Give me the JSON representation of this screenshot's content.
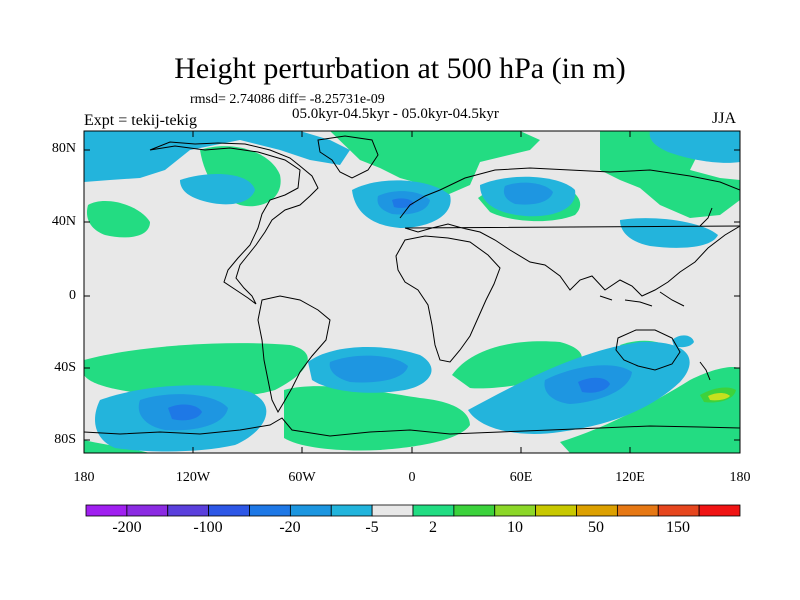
{
  "title": "Height perturbation at 500 hPa (in m)",
  "stats": "rmsd= 2.74086 diff= -8.25731e-09",
  "period": "05.0kyr-04.5kyr - 05.0kyr-04.5kyr",
  "experiment": "Expt = tekij-tekig",
  "season": "JJA",
  "lat_labels": [
    "80N",
    "40N",
    "0",
    "40S",
    "80S"
  ],
  "lon_labels": [
    "180",
    "120W",
    "60W",
    "0",
    "60E",
    "120E",
    "180"
  ],
  "colorbar": {
    "labels": [
      "-200",
      "-100",
      "-20",
      "-5",
      "2",
      "10",
      "50",
      "150"
    ],
    "colors": [
      "#a020f0",
      "#8b2be2",
      "#5a3fdc",
      "#2d57e6",
      "#1e78e6",
      "#1c96e0",
      "#22b4dc",
      "#e8e8e8",
      "#22dc82",
      "#3cd23c",
      "#8cd728",
      "#c8c800",
      "#dca000",
      "#e67814",
      "#e6461e",
      "#f01414"
    ]
  },
  "field_colors": {
    "neutral": "#e8e8e8",
    "pos_light": "#23dc82",
    "pos_mid": "#3dd23c",
    "pos_strong": "#c8e01e",
    "neg_light": "#23b4dc",
    "neg_mid": "#1e96e1",
    "neg_strong": "#1e78e6"
  }
}
